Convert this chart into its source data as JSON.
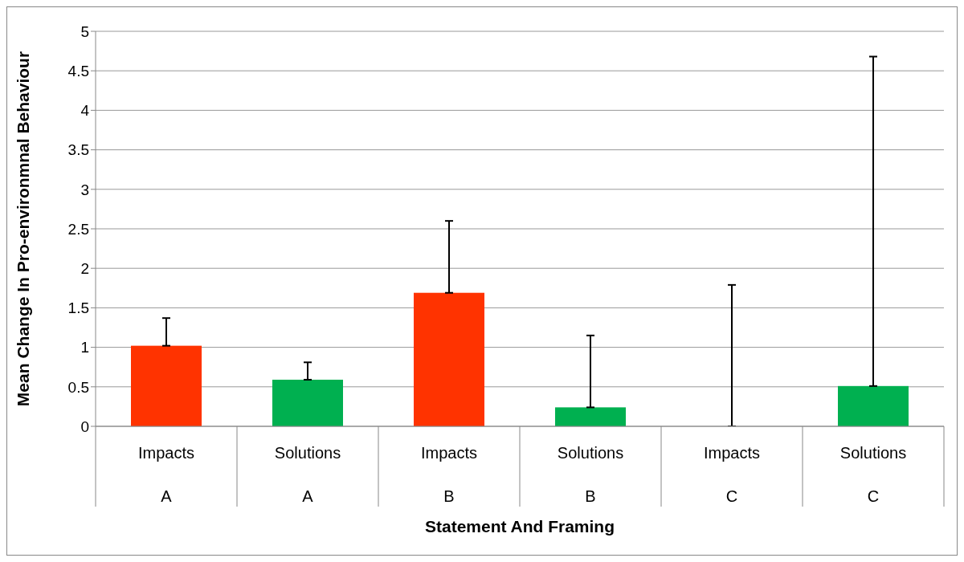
{
  "chart_data": {
    "type": "bar",
    "xlabel": "Statement And Framing",
    "ylabel": "Mean Change In Pro-environmnal Behaviour",
    "categories": [
      "Impacts A",
      "Solutions A",
      "Impacts B",
      "Solutions B",
      "Impacts C",
      "Solutions C"
    ],
    "values": [
      1.02,
      0.59,
      1.69,
      0.24,
      0,
      0.51
    ],
    "colors": [
      "#ff3300",
      "#00b050",
      "#ff3300",
      "#00b050",
      "#ff3300",
      "#00b050"
    ],
    "errors": [
      [
        1.02,
        1.37
      ],
      [
        0.59,
        0.81
      ],
      [
        1.69,
        2.6
      ],
      [
        0.24,
        1.15
      ],
      [
        0,
        1.79
      ],
      [
        0.51,
        4.68
      ]
    ],
    "ylim": [
      0,
      5
    ],
    "yticks": [
      0,
      0.5,
      1,
      1.5,
      2,
      2.5,
      3,
      3.5,
      4,
      4.5,
      5
    ],
    "grid": "y",
    "legend": false
  }
}
